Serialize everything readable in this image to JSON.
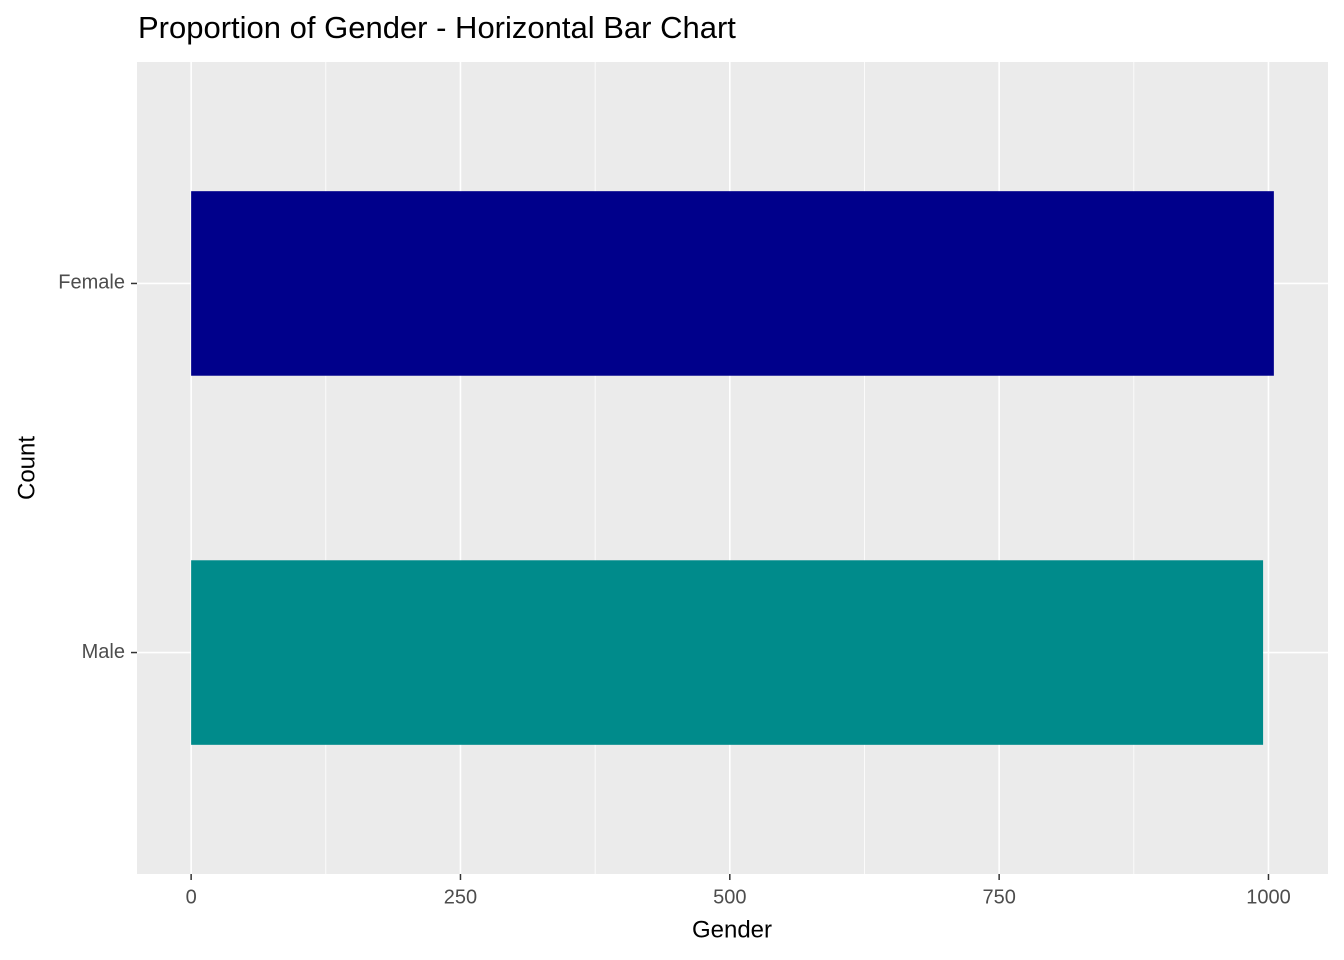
{
  "chart_data": {
    "type": "hbar",
    "title": "Proportion of Gender - Horizontal Bar Chart",
    "x_label": "Gender",
    "y_label": "Count",
    "categories": [
      "Male",
      "Female"
    ],
    "series": [
      {
        "values": [
          995,
          1005
        ],
        "colors": [
          "#008B8B",
          "#00008B"
        ]
      }
    ],
    "xlim": [
      -50.25,
      1055.25
    ],
    "xticks": [
      0,
      250,
      500,
      750,
      1000
    ],
    "xminorticks": [
      125,
      375,
      625,
      875
    ],
    "grid": true
  }
}
